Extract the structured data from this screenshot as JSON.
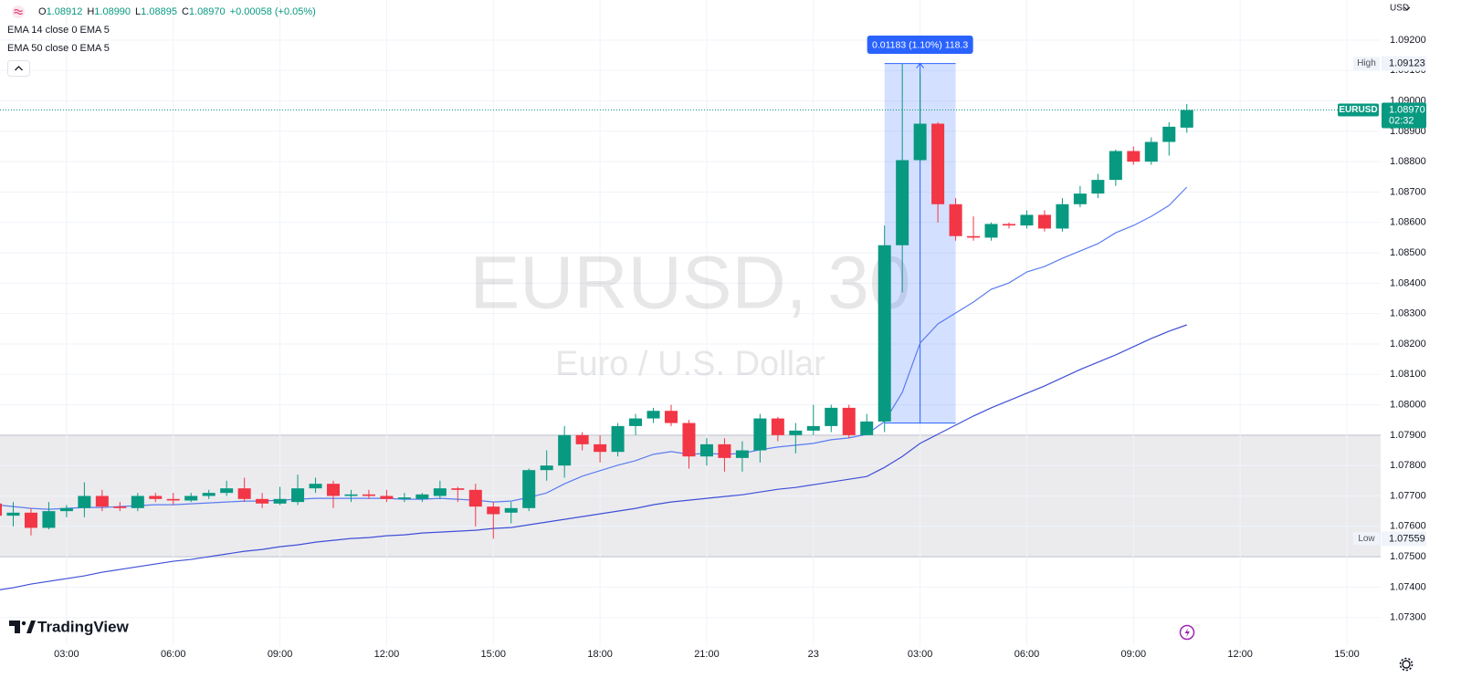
{
  "header": {
    "ohlc": [
      {
        "label": "O",
        "value": "1.08912"
      },
      {
        "label": "H",
        "value": "1.08990"
      },
      {
        "label": "L",
        "value": "1.08895"
      },
      {
        "label": "C",
        "value": "1.08970"
      }
    ],
    "change": "+0.00058 (+0.05%)"
  },
  "currency": "USD",
  "brand": "TradingView",
  "chart_data": {
    "type": "candlestick",
    "title": "EURUSD, 30",
    "subtitle": "Euro / U.S. Dollar",
    "up_color": "#089981",
    "down_color": "#f23645",
    "x": [
      1,
      1.5,
      2,
      2.5,
      3,
      3.5,
      4,
      4.5,
      5,
      5.5,
      6,
      6.5,
      7,
      7.5,
      8,
      8.5,
      9,
      9.5,
      10,
      10.5,
      11,
      11.5,
      12,
      12.5,
      13,
      13.5,
      14,
      14.5,
      15,
      15.5,
      16,
      16.5,
      17,
      17.5,
      18,
      18.5,
      19,
      19.5,
      20,
      20.5,
      21,
      21.5,
      22,
      22.5,
      23,
      23.5,
      24,
      24.5,
      25,
      25.5,
      26,
      26.5,
      27,
      27.5,
      28,
      28.5,
      29,
      29.5,
      30,
      30.5,
      31,
      31.5,
      32,
      32.5,
      33,
      33.5,
      34,
      34.5
    ],
    "open": [
      1.07675,
      1.07635,
      1.07645,
      1.07595,
      1.0765,
      1.0766,
      1.077,
      1.07665,
      1.0766,
      1.077,
      1.0769,
      1.07685,
      1.077,
      1.0771,
      1.07725,
      1.0769,
      1.07675,
      1.0768,
      1.07725,
      1.0774,
      1.077,
      1.07705,
      1.077,
      1.0769,
      1.0769,
      1.077,
      1.07725,
      1.0772,
      1.07665,
      1.07645,
      1.0766,
      1.07785,
      1.078,
      1.079,
      1.0787,
      1.07845,
      1.0793,
      1.07955,
      1.0798,
      1.0794,
      1.0783,
      1.0787,
      1.07825,
      1.0785,
      1.07955,
      1.079,
      1.07915,
      1.0793,
      1.0799,
      1.079,
      1.07945,
      1.08525,
      1.08805,
      1.08925,
      1.0866,
      1.08555,
      1.0855,
      1.08595,
      1.0859,
      1.08625,
      1.0858,
      1.0866,
      1.08695,
      1.0874,
      1.08835,
      1.088,
      1.08865,
      1.08912
    ],
    "high": [
      1.0771,
      1.0768,
      1.0766,
      1.0768,
      1.0767,
      1.07745,
      1.0772,
      1.0768,
      1.0771,
      1.0771,
      1.0771,
      1.0771,
      1.0772,
      1.0775,
      1.0776,
      1.0771,
      1.0773,
      1.0777,
      1.0776,
      1.0775,
      1.0772,
      1.0772,
      1.0772,
      1.0771,
      1.0771,
      1.0775,
      1.0773,
      1.0774,
      1.0768,
      1.0768,
      1.0779,
      1.0785,
      1.0793,
      1.0791,
      1.079,
      1.0794,
      1.0797,
      1.0799,
      1.08,
      1.0795,
      1.0789,
      1.0789,
      1.0788,
      1.0797,
      1.0796,
      1.0794,
      1.08,
      1.08,
      1.08,
      1.0797,
      1.0859,
      1.09123,
      1.0909,
      1.0893,
      1.0868,
      1.0862,
      1.086,
      1.086,
      1.0864,
      1.0864,
      1.0868,
      1.0872,
      1.0876,
      1.0884,
      1.0885,
      1.0888,
      1.0893,
      1.0899
    ],
    "low": [
      1.0762,
      1.076,
      1.0757,
      1.0759,
      1.0763,
      1.0763,
      1.0765,
      1.0765,
      1.0765,
      1.0768,
      1.0767,
      1.0768,
      1.0769,
      1.077,
      1.0768,
      1.0766,
      1.0767,
      1.0767,
      1.0771,
      1.0766,
      1.0768,
      1.0769,
      1.0768,
      1.0768,
      1.0768,
      1.0769,
      1.0768,
      1.076,
      1.07559,
      1.0761,
      1.0765,
      1.0775,
      1.0776,
      1.0785,
      1.0781,
      1.0783,
      1.079,
      1.0794,
      1.0793,
      1.0779,
      1.078,
      1.0778,
      1.0778,
      1.0781,
      1.0788,
      1.0784,
      1.079,
      1.0791,
      1.0789,
      1.079,
      1.0791,
      1.0837,
      1.088,
      1.086,
      1.0854,
      1.0854,
      1.0854,
      1.0858,
      1.0858,
      1.0857,
      1.0857,
      1.0865,
      1.0868,
      1.0872,
      1.0879,
      1.0879,
      1.0882,
      1.08895
    ],
    "close": [
      1.07635,
      1.07645,
      1.07595,
      1.0765,
      1.0766,
      1.077,
      1.07665,
      1.0766,
      1.077,
      1.0769,
      1.07685,
      1.077,
      1.0771,
      1.07725,
      1.0769,
      1.07675,
      1.0769,
      1.07725,
      1.0774,
      1.077,
      1.07705,
      1.077,
      1.0769,
      1.07695,
      1.07705,
      1.07725,
      1.0772,
      1.07665,
      1.0764,
      1.0766,
      1.07785,
      1.078,
      1.079,
      1.0787,
      1.07845,
      1.0793,
      1.07955,
      1.0798,
      1.0794,
      1.0783,
      1.0787,
      1.07825,
      1.0785,
      1.07955,
      1.079,
      1.07915,
      1.0793,
      1.0799,
      1.079,
      1.07945,
      1.08525,
      1.08805,
      1.08925,
      1.0866,
      1.08555,
      1.0855,
      1.08595,
      1.0859,
      1.08625,
      1.0858,
      1.0866,
      1.08695,
      1.0874,
      1.08835,
      1.088,
      1.08865,
      1.08915,
      1.0897
    ],
    "series": [
      {
        "name": "EMA 14 close 0 EMA 5",
        "color": "#5b7cf0",
        "values": [
          1.07671,
          1.07665,
          1.07659,
          1.07656,
          1.07659,
          1.07662,
          1.07662,
          1.07665,
          1.07668,
          1.07671,
          1.07671,
          1.07674,
          1.07677,
          1.0768,
          1.07683,
          1.07683,
          1.07686,
          1.07689,
          1.07692,
          1.07692,
          1.07692,
          1.07692,
          1.07692,
          1.07689,
          1.07689,
          1.07692,
          1.07689,
          1.07686,
          1.0768,
          1.07683,
          1.07695,
          1.0771,
          1.0774,
          1.07765,
          1.07783,
          1.07801,
          1.07816,
          1.07837,
          1.07846,
          1.07837,
          1.0784,
          1.07837,
          1.0784,
          1.07852,
          1.07861,
          1.07867,
          1.07873,
          1.07885,
          1.07891,
          1.07903,
          1.07945,
          1.08041,
          1.08203,
          1.08266,
          1.08302,
          1.08338,
          1.0838,
          1.08401,
          1.08437,
          1.08455,
          1.08482,
          1.08506,
          1.0853,
          1.08566,
          1.0859,
          1.0862,
          1.08656,
          1.08716
        ]
      },
      {
        "name": "EMA 50 close 0 EMA 5",
        "color": "#3f4fd6",
        "values": [
          1.07389,
          1.07398,
          1.0741,
          1.07419,
          1.07428,
          1.07437,
          1.07449,
          1.07458,
          1.07467,
          1.07476,
          1.07485,
          1.07491,
          1.075,
          1.07509,
          1.07518,
          1.07524,
          1.07533,
          1.07539,
          1.07548,
          1.07554,
          1.0756,
          1.07563,
          1.07569,
          1.07572,
          1.07578,
          1.07581,
          1.07584,
          1.07587,
          1.07593,
          1.07596,
          1.07605,
          1.07614,
          1.07623,
          1.07632,
          1.07641,
          1.0765,
          1.07659,
          1.07671,
          1.0768,
          1.07686,
          1.07692,
          1.07698,
          1.07704,
          1.07713,
          1.07722,
          1.07728,
          1.07737,
          1.07746,
          1.07755,
          1.07764,
          1.07794,
          1.0783,
          1.07873,
          1.07903,
          1.07933,
          1.07963,
          1.0799,
          1.08014,
          1.08038,
          1.08062,
          1.08089,
          1.08116,
          1.0814,
          1.08164,
          1.08191,
          1.08218,
          1.08242,
          1.08263
        ]
      }
    ],
    "xlim": [
      1.128,
      39.95
    ],
    "xticks": [
      {
        "value": 3,
        "label": "03:00"
      },
      {
        "value": 6,
        "label": "06:00"
      },
      {
        "value": 9,
        "label": "09:00"
      },
      {
        "value": 12,
        "label": "12:00"
      },
      {
        "value": 15,
        "label": "15:00"
      },
      {
        "value": 18,
        "label": "18:00"
      },
      {
        "value": 21,
        "label": "21:00"
      },
      {
        "value": 24,
        "label": "23"
      },
      {
        "value": 27,
        "label": "03:00"
      },
      {
        "value": 30,
        "label": "06:00"
      },
      {
        "value": 33,
        "label": "09:00"
      },
      {
        "value": 36,
        "label": "12:00"
      },
      {
        "value": 39,
        "label": "15:00"
      }
    ],
    "ylim": [
      1.07206,
      1.09332
    ],
    "yticks": [
      {
        "value": 1.073,
        "label": "1.07300"
      },
      {
        "value": 1.074,
        "label": "1.07400"
      },
      {
        "value": 1.075,
        "label": "1.07500"
      },
      {
        "value": 1.076,
        "label": "1.07600"
      },
      {
        "value": 1.077,
        "label": "1.07700"
      },
      {
        "value": 1.078,
        "label": "1.07800"
      },
      {
        "value": 1.079,
        "label": "1.07900"
      },
      {
        "value": 1.08,
        "label": "1.08000"
      },
      {
        "value": 1.081,
        "label": "1.08100"
      },
      {
        "value": 1.082,
        "label": "1.08200"
      },
      {
        "value": 1.083,
        "label": "1.08300"
      },
      {
        "value": 1.084,
        "label": "1.08400"
      },
      {
        "value": 1.085,
        "label": "1.08500"
      },
      {
        "value": 1.086,
        "label": "1.08600"
      },
      {
        "value": 1.087,
        "label": "1.08700"
      },
      {
        "value": 1.088,
        "label": "1.08800"
      },
      {
        "value": 1.089,
        "label": "1.08900"
      },
      {
        "value": 1.09,
        "label": "1.09000"
      },
      {
        "value": 1.091,
        "label": "1.09100"
      },
      {
        "value": 1.092,
        "label": "1.09200"
      }
    ],
    "grid": true,
    "zone": {
      "low": 1.075,
      "high": 1.079
    },
    "measure": {
      "x": [
        26,
        28
      ],
      "y": [
        1.0794,
        1.09123
      ],
      "label": "0.01183 (1.10%) 118.3"
    },
    "high_marker": {
      "label": "High",
      "value": 1.09123
    },
    "low_marker": {
      "label": "Low",
      "value": 1.07559
    },
    "last_price": {
      "symbol": "EURUSD",
      "value": {
        "value": 1.0897,
        "label": "1.08970"
      },
      "countdown": "02:32"
    }
  }
}
